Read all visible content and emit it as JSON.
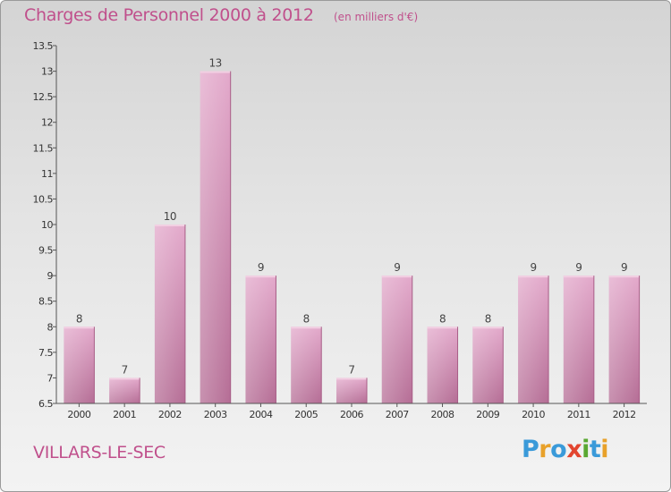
{
  "header": {
    "title": "Charges de Personnel 2000 à 2012",
    "unit": "(en milliers d'€)"
  },
  "footer": {
    "commune": "VILLARS-LE-SEC",
    "logo_text": "Proxiti",
    "logo_letters": [
      {
        "char": "P",
        "color": "#3a9ad9"
      },
      {
        "char": "r",
        "color": "#e8a12a"
      },
      {
        "char": "o",
        "color": "#3a9ad9"
      },
      {
        "char": "x",
        "color": "#e2452f"
      },
      {
        "char": "i",
        "color": "#5aa832"
      },
      {
        "char": "t",
        "color": "#3a9ad9"
      },
      {
        "char": "i",
        "color": "#e8a12a"
      }
    ]
  },
  "chart_data": {
    "type": "bar",
    "categories": [
      "2000",
      "2001",
      "2002",
      "2003",
      "2004",
      "2005",
      "2006",
      "2007",
      "2008",
      "2009",
      "2010",
      "2011",
      "2012"
    ],
    "values": [
      8,
      7,
      10,
      13,
      9,
      8,
      7,
      9,
      8,
      8,
      9,
      9,
      9
    ],
    "data_labels": [
      "8",
      "7",
      "10",
      "13",
      "9",
      "8",
      "7",
      "9",
      "8",
      "8",
      "9",
      "9",
      "9"
    ],
    "ylim": [
      6.5,
      13.5
    ],
    "yticks": [
      6.5,
      7,
      7.5,
      8,
      8.5,
      9,
      9.5,
      10,
      10.5,
      11,
      11.5,
      12,
      12.5,
      13,
      13.5
    ],
    "ytick_labels": [
      "6.5",
      "7",
      "7.5",
      "8",
      "8.5",
      "9",
      "9.5",
      "10",
      "10.5",
      "11",
      "11.5",
      "12",
      "12.5",
      "13",
      "13.5"
    ],
    "grid": false,
    "bar_color": "#cf7fac"
  }
}
